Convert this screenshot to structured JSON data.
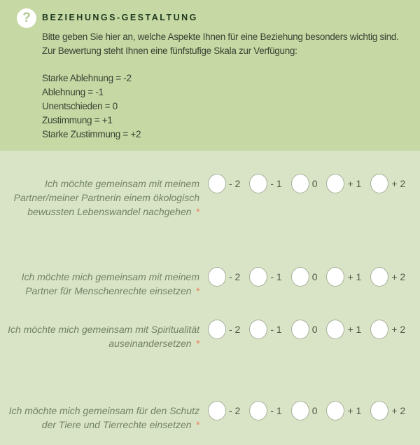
{
  "header": {
    "icon": "question-mark-icon",
    "icon_glyph": "?",
    "title": "BEZIEHUNGS-GESTALTUNG",
    "intro_lines": [
      "Bitte geben Sie hier an, welche Aspekte Ihnen für eine Beziehung besonders wichtig sind.",
      "Zur Bewertung steht Ihnen eine fünfstufige Skala zur Verfügung:"
    ],
    "scale_legend": [
      "Starke Ablehnung = -2",
      "Ablehnung = -1",
      "Unentschieden = 0",
      "Zustimmung = +1",
      "Starke Zustimmung = +2"
    ]
  },
  "required_marker": "*",
  "scale_options": [
    "- 2",
    "- 1",
    "0",
    "+ 1",
    "+ 2"
  ],
  "questions": [
    {
      "lines": [
        "Ich möchte gemeinsam mit meinem",
        "Partner/meiner Partnerin einem ökologisch",
        "bewussten Lebenswandel nachgehen"
      ],
      "required": true,
      "selected": null
    },
    {
      "lines": [
        "Ich möchte mich gemeinsam mit meinem",
        "Partner für Menschenrechte einsetzen"
      ],
      "required": true,
      "selected": null
    },
    {
      "lines": [
        "Ich möchte mich gemeinsam mit Spiritualität",
        "auseinandersetzen"
      ],
      "required": true,
      "selected": null
    },
    {
      "lines": [
        "Ich möchte mich gemeinsam für den Schutz",
        "der Tiere und Tierrechte einsetzen"
      ],
      "required": true,
      "selected": null
    }
  ],
  "colors": {
    "page_bg": "#d9e4c7",
    "header_bg": "#c6d8a4",
    "title_color": "#1e3a1e",
    "header_text": "#3a4233",
    "icon_glyph": "#b2c894",
    "question_text": "#718163",
    "option_label": "#4f5946",
    "radio_border": "#a6b099",
    "radio_fill": "#ffffff",
    "asterisk": "#ed7d52"
  }
}
